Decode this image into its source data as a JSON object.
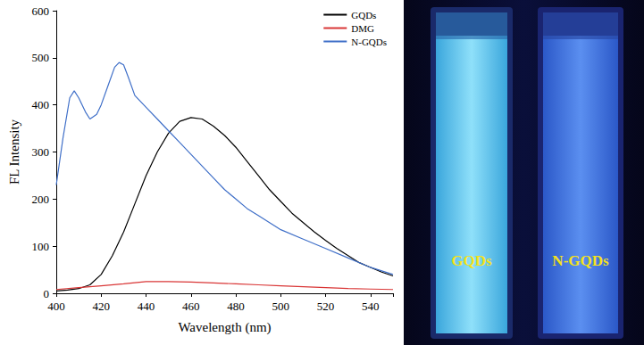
{
  "chart_data": {
    "type": "line",
    "x_label": "Wavelength (nm)",
    "y_label": "FL Intensity",
    "xlim": [
      400,
      550
    ],
    "xticks": [
      400,
      420,
      440,
      460,
      480,
      500,
      520,
      540
    ],
    "ylim": [
      0,
      600
    ],
    "yticks": [
      0,
      100,
      200,
      300,
      400,
      500,
      600
    ],
    "grid": false,
    "legend": "upper right",
    "series": [
      {
        "name": "GQDs",
        "color": "#000000",
        "x": [
          400,
          405,
          410,
          415,
          420,
          425,
          430,
          435,
          440,
          445,
          450,
          455,
          460,
          465,
          470,
          475,
          480,
          485,
          490,
          495,
          500,
          505,
          510,
          515,
          520,
          525,
          530,
          535,
          540,
          545,
          550
        ],
        "values": [
          5,
          7,
          10,
          18,
          40,
          80,
          130,
          190,
          250,
          300,
          340,
          365,
          373,
          370,
          355,
          335,
          310,
          280,
          250,
          220,
          195,
          170,
          150,
          130,
          112,
          95,
          80,
          65,
          55,
          45,
          37
        ]
      },
      {
        "name": "DMG",
        "color": "#d93636",
        "x": [
          400,
          410,
          420,
          430,
          440,
          450,
          460,
          470,
          480,
          490,
          500,
          510,
          520,
          530,
          540,
          550
        ],
        "values": [
          8,
          12,
          16,
          20,
          25,
          25,
          24,
          22,
          20,
          18,
          16,
          14,
          12,
          10,
          9,
          8
        ]
      },
      {
        "name": "N-GQDs",
        "color": "#3f6fc8",
        "x": [
          400,
          403,
          406,
          408,
          410,
          413,
          415,
          418,
          420,
          423,
          426,
          428,
          430,
          432,
          435,
          440,
          445,
          450,
          455,
          460,
          465,
          470,
          475,
          480,
          485,
          490,
          495,
          500,
          510,
          520,
          530,
          540,
          550
        ],
        "values": [
          230,
          330,
          415,
          430,
          415,
          385,
          370,
          380,
          400,
          440,
          480,
          490,
          485,
          460,
          420,
          395,
          370,
          345,
          320,
          295,
          270,
          245,
          220,
          200,
          180,
          165,
          150,
          135,
          115,
          95,
          75,
          55,
          40
        ]
      }
    ]
  },
  "photo": {
    "labels": [
      "GQDs",
      "N-GQDs"
    ]
  }
}
